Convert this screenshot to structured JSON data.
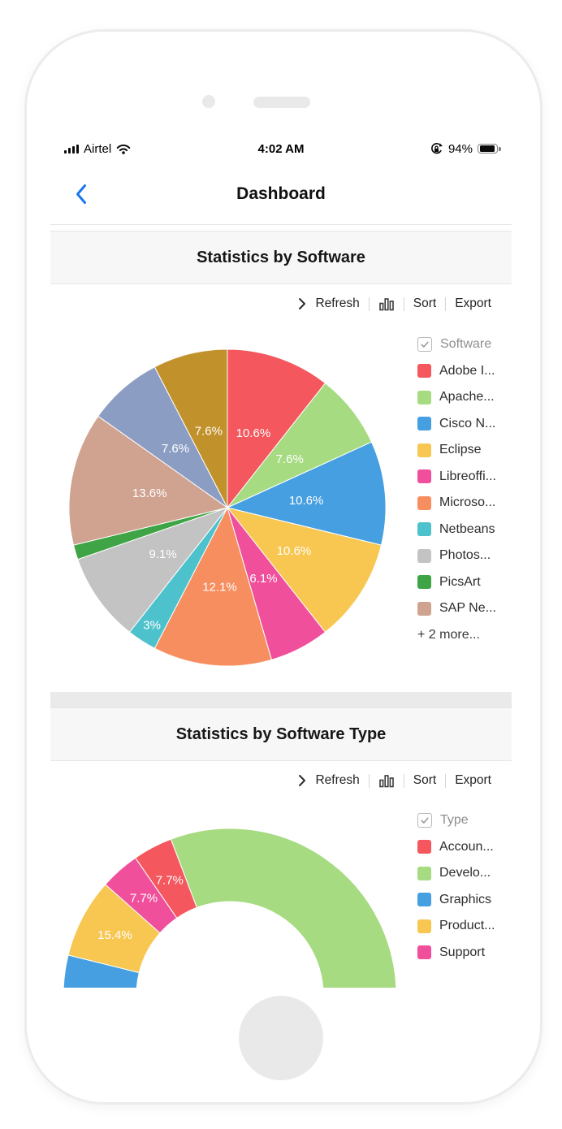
{
  "status_bar": {
    "carrier": "Airtel",
    "time": "4:02 AM",
    "battery_percent": "94%",
    "battery_level": 94
  },
  "nav_bar": {
    "title": "Dashboard"
  },
  "sections": [
    {
      "header": "Statistics by Software",
      "toolbar": {
        "refresh": "Refresh",
        "sort": "Sort",
        "export": "Export"
      }
    },
    {
      "header": "Statistics by Software Type",
      "toolbar": {
        "refresh": "Refresh",
        "sort": "Sort",
        "export": "Export"
      }
    }
  ],
  "chart_data": [
    {
      "type": "pie",
      "title": "Statistics by Software",
      "label_format": "percent",
      "slices": [
        {
          "name": "Adobe I...",
          "value": 10.6,
          "label": "10.6%",
          "color": "#f4575d"
        },
        {
          "name": "Apache...",
          "value": 7.6,
          "label": "7.6%",
          "color": "#a6db82"
        },
        {
          "name": "Cisco N...",
          "value": 10.6,
          "label": "10.6%",
          "color": "#469fe0"
        },
        {
          "name": "Eclipse",
          "value": 10.6,
          "label": "10.6%",
          "color": "#f7c752"
        },
        {
          "name": "Libreoffi...",
          "value": 6.1,
          "label": "6.1%",
          "color": "#f0509b"
        },
        {
          "name": "Microso...",
          "value": 12.1,
          "label": "12.1%",
          "color": "#f78e5f"
        },
        {
          "name": "Netbeans",
          "value": 3,
          "label": "3%",
          "color": "#4ec2cc"
        },
        {
          "name": "Photos...",
          "value": 9.1,
          "label": "9.1%",
          "color": "#c3c3c3"
        },
        {
          "name": "PicsArt",
          "value": 1.5,
          "label": "",
          "color": "#3fa445"
        },
        {
          "name": "SAP Ne...",
          "value": 13.6,
          "label": "13.6%",
          "color": "#d0a391"
        },
        {
          "name": "",
          "value": 7.6,
          "label": "7.6%",
          "color": "#8c9dc4"
        },
        {
          "name": "",
          "value": 7.6,
          "label": "7.6%",
          "color": "#c1922c"
        }
      ],
      "legend": {
        "header": "Software",
        "position": "right",
        "items": [
          {
            "label": "Adobe I...",
            "color": "#f4575d"
          },
          {
            "label": "Apache...",
            "color": "#a6db82"
          },
          {
            "label": "Cisco N...",
            "color": "#469fe0"
          },
          {
            "label": "Eclipse",
            "color": "#f7c752"
          },
          {
            "label": "Libreoffi...",
            "color": "#f0509b"
          },
          {
            "label": "Microso...",
            "color": "#f78e5f"
          },
          {
            "label": "Netbeans",
            "color": "#4ec2cc"
          },
          {
            "label": "Photos...",
            "color": "#c3c3c3"
          },
          {
            "label": "PicsArt",
            "color": "#3fa445"
          },
          {
            "label": "SAP Ne...",
            "color": "#d0a391"
          }
        ],
        "more_link": "+ 2 more..."
      }
    },
    {
      "type": "pie",
      "subtype": "semi-doughnut",
      "title": "Statistics by Software Type",
      "start_angle": 180,
      "sweep_angle": 180,
      "inner_radius_ratio": 0.56,
      "label_format": "percent",
      "slices": [
        {
          "name": "Graphics",
          "value": 7.7,
          "label": "",
          "label_visible": false,
          "color": "#469fe0"
        },
        {
          "name": "Product...",
          "value": 15.4,
          "label": "15.4%",
          "label_visible": true,
          "color": "#f7c752"
        },
        {
          "name": "Support",
          "value": 7.7,
          "label": "7.7%",
          "label_visible": true,
          "color": "#f0509b"
        },
        {
          "name": "Accoun...",
          "value": 7.7,
          "label": "7.7%",
          "label_visible": true,
          "color": "#f4575d"
        },
        {
          "name": "Develo...",
          "value": 61.5,
          "label": "",
          "label_visible": false,
          "color": "#a6db82"
        }
      ],
      "legend": {
        "header": "Type",
        "position": "right",
        "items": [
          {
            "label": "Accoun...",
            "color": "#f4575d"
          },
          {
            "label": "Develo...",
            "color": "#a6db82"
          },
          {
            "label": "Graphics",
            "color": "#469fe0"
          },
          {
            "label": "Product...",
            "color": "#f7c752"
          },
          {
            "label": "Support",
            "color": "#f0509b"
          }
        ]
      }
    }
  ]
}
